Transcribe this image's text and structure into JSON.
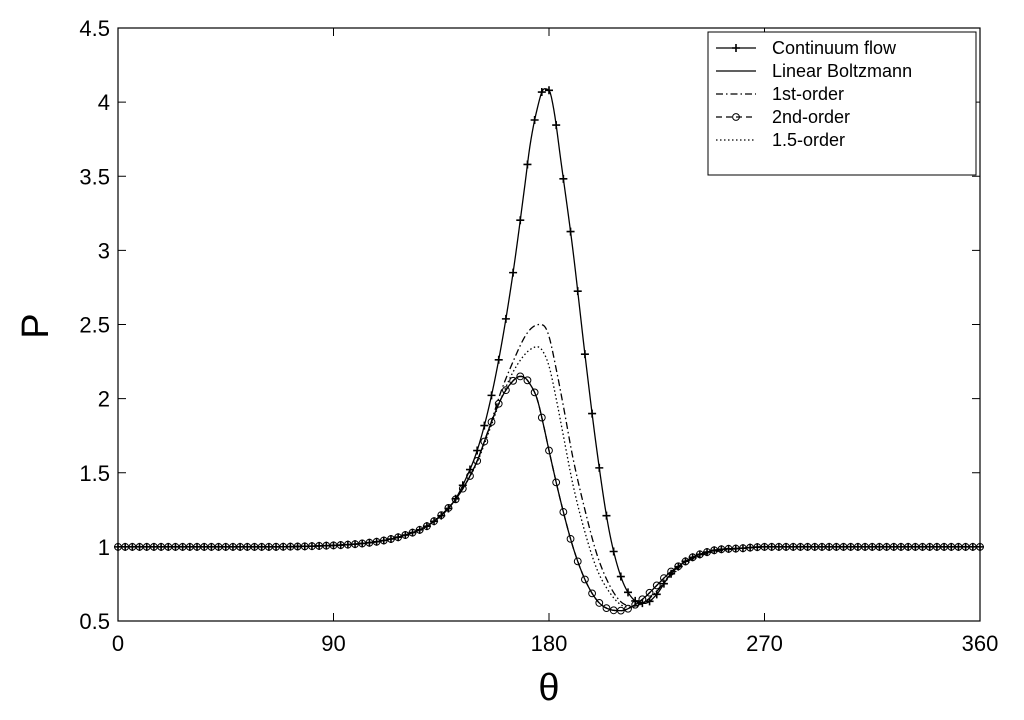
{
  "chart_data": {
    "type": "line",
    "title": "",
    "xlabel": "θ",
    "ylabel": "P",
    "xlim": [
      0,
      360
    ],
    "ylim": [
      0.5,
      4.5
    ],
    "xticks": [
      0,
      90,
      180,
      270,
      360
    ],
    "yticks": [
      0.5,
      1,
      1.5,
      2,
      2.5,
      3,
      3.5,
      4,
      4.5
    ],
    "xtick_labels": [
      "0",
      "90",
      "180",
      "270",
      "360"
    ],
    "ytick_labels": [
      "0.5",
      "1",
      "1.5",
      "2",
      "2.5",
      "3",
      "3.5",
      "4",
      "4.5"
    ],
    "grid": false,
    "legend_position": "top-right",
    "series": [
      {
        "name": "Continuum flow",
        "style": "solid-plus-markers",
        "color": "#000000",
        "x": [
          0,
          60,
          90,
          100,
          110,
          120,
          130,
          140,
          145,
          150,
          155,
          160,
          165,
          170,
          172,
          175,
          178,
          180,
          182,
          185,
          190,
          195,
          200,
          205,
          210,
          215,
          220,
          225,
          230,
          235,
          240,
          245,
          250,
          260,
          270,
          300,
          330,
          360
        ],
        "y": [
          1.0,
          1.0,
          1.01,
          1.02,
          1.04,
          1.08,
          1.15,
          1.3,
          1.45,
          1.65,
          1.95,
          2.35,
          2.85,
          3.45,
          3.7,
          3.95,
          4.09,
          4.08,
          3.95,
          3.6,
          3.0,
          2.3,
          1.65,
          1.12,
          0.8,
          0.65,
          0.62,
          0.68,
          0.8,
          0.88,
          0.93,
          0.96,
          0.98,
          0.99,
          1.0,
          1.0,
          1.0,
          1.0
        ]
      },
      {
        "name": "Linear Boltzmann",
        "style": "solid",
        "color": "#000000",
        "x": [
          0,
          60,
          90,
          100,
          110,
          120,
          130,
          140,
          145,
          150,
          155,
          160,
          165,
          168,
          170,
          172,
          175,
          178,
          180,
          185,
          190,
          195,
          200,
          205,
          210,
          215,
          220,
          225,
          230,
          235,
          240,
          245,
          250,
          260,
          270,
          300,
          330,
          360
        ],
        "y": [
          1.0,
          1.0,
          1.01,
          1.02,
          1.04,
          1.08,
          1.15,
          1.3,
          1.42,
          1.58,
          1.8,
          2.0,
          2.12,
          2.15,
          2.14,
          2.1,
          2.0,
          1.8,
          1.65,
          1.3,
          1.0,
          0.78,
          0.64,
          0.58,
          0.57,
          0.6,
          0.66,
          0.74,
          0.82,
          0.88,
          0.93,
          0.96,
          0.98,
          0.99,
          1.0,
          1.0,
          1.0,
          1.0
        ]
      },
      {
        "name": "1st-order",
        "style": "dashdot",
        "color": "#000000",
        "x": [
          0,
          60,
          90,
          100,
          110,
          120,
          130,
          140,
          145,
          150,
          155,
          160,
          165,
          170,
          173,
          176,
          178,
          180,
          183,
          186,
          190,
          195,
          200,
          205,
          210,
          215,
          220,
          225,
          230,
          235,
          240,
          245,
          250,
          260,
          270,
          300,
          330,
          360
        ],
        "y": [
          1.0,
          1.0,
          1.01,
          1.02,
          1.04,
          1.08,
          1.15,
          1.3,
          1.42,
          1.58,
          1.8,
          2.05,
          2.25,
          2.42,
          2.48,
          2.5,
          2.49,
          2.42,
          2.2,
          1.95,
          1.6,
          1.25,
          0.95,
          0.75,
          0.63,
          0.6,
          0.63,
          0.7,
          0.8,
          0.87,
          0.92,
          0.95,
          0.97,
          0.99,
          1.0,
          1.0,
          1.0,
          1.0
        ]
      },
      {
        "name": "2nd-order",
        "style": "dashed-circle-markers",
        "color": "#000000",
        "x": [
          0,
          60,
          90,
          100,
          110,
          120,
          130,
          140,
          145,
          150,
          155,
          160,
          165,
          168,
          170,
          172,
          175,
          178,
          180,
          185,
          190,
          195,
          200,
          205,
          210,
          215,
          220,
          225,
          230,
          235,
          240,
          245,
          250,
          260,
          270,
          300,
          330,
          360
        ],
        "y": [
          1.0,
          1.0,
          1.01,
          1.02,
          1.04,
          1.08,
          1.15,
          1.3,
          1.42,
          1.58,
          1.8,
          2.0,
          2.12,
          2.15,
          2.14,
          2.1,
          2.0,
          1.8,
          1.65,
          1.3,
          1.0,
          0.78,
          0.64,
          0.58,
          0.57,
          0.6,
          0.66,
          0.74,
          0.82,
          0.88,
          0.93,
          0.96,
          0.98,
          0.99,
          1.0,
          1.0,
          1.0,
          1.0
        ]
      },
      {
        "name": "1.5-order",
        "style": "dotted",
        "color": "#000000",
        "x": [
          0,
          60,
          90,
          100,
          110,
          120,
          130,
          140,
          145,
          150,
          155,
          160,
          165,
          170,
          173,
          175,
          177,
          180,
          183,
          186,
          190,
          195,
          200,
          205,
          210,
          215,
          220,
          225,
          230,
          235,
          240,
          245,
          250,
          260,
          270,
          300,
          330,
          360
        ],
        "y": [
          1.0,
          1.0,
          1.01,
          1.02,
          1.04,
          1.08,
          1.15,
          1.3,
          1.42,
          1.57,
          1.78,
          2.0,
          2.18,
          2.3,
          2.34,
          2.35,
          2.33,
          2.22,
          2.0,
          1.75,
          1.42,
          1.1,
          0.85,
          0.7,
          0.61,
          0.59,
          0.63,
          0.7,
          0.79,
          0.86,
          0.91,
          0.95,
          0.97,
          0.99,
          1.0,
          1.0,
          1.0,
          1.0
        ]
      }
    ]
  }
}
